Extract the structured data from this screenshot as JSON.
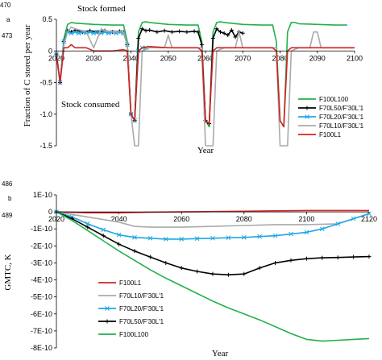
{
  "margin_numbers": [
    "470",
    "a",
    "473",
    "486",
    "b",
    "489"
  ],
  "chart_data": [
    {
      "type": "line",
      "panel": "a",
      "xlabel": "Year",
      "ylabel": "Fraction of C stored per year",
      "xlim": [
        2020,
        2100
      ],
      "ylim": [
        -1.5,
        0.5
      ],
      "xticks": [
        "2020",
        "2030",
        "2040",
        "2050",
        "2060",
        "2070",
        "2080",
        "2090",
        "2100"
      ],
      "yticks": [
        "0.5",
        "0",
        "-0.5",
        "-1.0",
        "-1.5"
      ],
      "annotations": [
        "Stock formed",
        "Stock consumed"
      ],
      "legend_position": "bottom-right",
      "series": [
        {
          "name": "F100L100",
          "color": "#22b14c",
          "marker": "none",
          "x": [
            2020,
            2021,
            2022,
            2023,
            2024,
            2025,
            2030,
            2035,
            2038,
            2039,
            2040,
            2041,
            2042,
            2043,
            2044,
            2045,
            2050,
            2055,
            2058,
            2059,
            2060,
            2061,
            2062,
            2063,
            2064,
            2065,
            2070,
            2075,
            2078,
            2079,
            2080,
            2081,
            2082,
            2083,
            2084,
            2085,
            2090,
            2095,
            2098
          ],
          "y": [
            -0.05,
            -0.5,
            0.2,
            0.42,
            0.45,
            0.44,
            0.42,
            0.41,
            0.41,
            0.15,
            -1.0,
            -1.1,
            0.3,
            0.45,
            0.46,
            0.45,
            0.42,
            0.41,
            0.41,
            0.15,
            -1.1,
            -1.2,
            0.3,
            0.45,
            0.46,
            0.45,
            0.42,
            0.41,
            0.41,
            0.15,
            -1.1,
            -1.2,
            0.3,
            0.45,
            0.45,
            0.43,
            0.42,
            0.41,
            0.41
          ]
        },
        {
          "name": "F70L50/F'30L'1",
          "color": "#000000",
          "marker": "plus",
          "x": [
            2020,
            2021,
            2022,
            2023,
            2024,
            2025,
            2027,
            2029,
            2031,
            2033,
            2035,
            2037,
            2038,
            2039,
            2040,
            2041,
            2042,
            2043,
            2044,
            2045,
            2047,
            2049,
            2051,
            2053,
            2055,
            2057,
            2058,
            2059,
            2060,
            2061,
            2062,
            2063,
            2064,
            2065,
            2066,
            2067,
            2068,
            2069,
            2070
          ],
          "y": [
            -0.05,
            -0.5,
            0.15,
            0.32,
            0.3,
            0.33,
            0.3,
            0.32,
            0.3,
            0.32,
            0.3,
            0.31,
            0.3,
            0.1,
            -1.0,
            -1.1,
            0.2,
            0.35,
            0.32,
            0.33,
            0.3,
            0.32,
            0.3,
            0.31,
            0.3,
            0.31,
            0.3,
            0.1,
            -1.1,
            -1.15,
            0.2,
            0.35,
            0.3,
            0.28,
            0.25,
            0.33,
            0.22,
            0.3,
            0.28
          ]
        },
        {
          "name": "F70L20/F'30L'1",
          "color": "#1ea7e1",
          "marker": "x",
          "x": [
            2020,
            2021,
            2022,
            2023,
            2024,
            2025,
            2026,
            2027,
            2028,
            2029,
            2030,
            2031,
            2032,
            2033,
            2034,
            2035,
            2036,
            2037,
            2038,
            2039,
            2040,
            2041,
            2042,
            2043,
            2044
          ],
          "y": [
            -0.05,
            -0.5,
            0.15,
            0.3,
            0.28,
            0.3,
            0.28,
            0.3,
            0.28,
            0.3,
            0.28,
            0.3,
            0.28,
            0.3,
            0.28,
            0.3,
            0.28,
            0.3,
            0.28,
            0.1,
            -1.0,
            -1.1,
            0.0,
            0.05,
            0.05
          ]
        },
        {
          "name": "F70L10/F'30L'1",
          "color": "#aaaaaa",
          "marker": "none",
          "x": [
            2020,
            2021,
            2022,
            2023,
            2024,
            2025,
            2027,
            2028,
            2030,
            2032,
            2033,
            2035,
            2037,
            2038,
            2039,
            2040,
            2041,
            2042,
            2043,
            2045,
            2047,
            2049,
            2050,
            2051,
            2052,
            2054,
            2056,
            2058,
            2059,
            2060,
            2061,
            2062,
            2063,
            2065,
            2067,
            2068,
            2069,
            2070,
            2071,
            2072,
            2075,
            2078,
            2079,
            2080,
            2081,
            2082,
            2083,
            2085,
            2087,
            2088,
            2089,
            2090,
            2091,
            2092,
            2093,
            2095,
            2098,
            2100
          ],
          "y": [
            -0.05,
            -0.5,
            0.1,
            0.3,
            0.38,
            0.35,
            0.32,
            0.3,
            0.05,
            0.35,
            0.32,
            0.3,
            0.3,
            0.3,
            0.1,
            -1.0,
            -1.5,
            -1.5,
            0.0,
            0.05,
            0.05,
            0.05,
            0.25,
            0.05,
            0.05,
            0.05,
            0.05,
            0.05,
            0.05,
            -1.5,
            -1.5,
            -1.5,
            0.0,
            0.05,
            0.05,
            0.05,
            0.3,
            0.05,
            0.05,
            0.05,
            0.05,
            0.05,
            0.05,
            -1.5,
            -1.5,
            -1.5,
            0.0,
            0.05,
            0.05,
            0.05,
            0.3,
            0.3,
            0.05,
            0.05,
            0.05,
            0.05,
            0.05,
            0.05
          ]
        },
        {
          "name": "F100L1",
          "color": "#d42020",
          "marker": "none",
          "x": [
            2020,
            2021,
            2022,
            2023,
            2024,
            2025,
            2028,
            2030,
            2035,
            2038,
            2039,
            2040,
            2041,
            2042,
            2043,
            2045,
            2050,
            2055,
            2058,
            2059,
            2060,
            2061,
            2062,
            2063,
            2065,
            2070,
            2075,
            2078,
            2079,
            2080,
            2081,
            2082,
            2083,
            2085,
            2090,
            2095,
            2100
          ],
          "y": [
            -0.05,
            -0.5,
            0.05,
            0.05,
            0.1,
            0.05,
            0.05,
            0.0,
            0.0,
            0.02,
            0.0,
            -1.0,
            -1.1,
            0.0,
            0.05,
            0.07,
            0.05,
            0.05,
            0.05,
            0.0,
            -1.1,
            -1.15,
            0.0,
            0.05,
            0.05,
            0.05,
            0.05,
            0.05,
            0.0,
            -1.1,
            -1.2,
            0.0,
            0.05,
            0.05,
            0.05,
            0.05,
            0.05
          ]
        }
      ]
    },
    {
      "type": "line",
      "panel": "b",
      "xlabel": "Year",
      "ylabel": "GMTC, K",
      "xlim": [
        2020,
        2120
      ],
      "ylim": [
        -8e-10,
        1e-10
      ],
      "xticks": [
        "2020",
        "2040",
        "2060",
        "2080",
        "2100",
        "2120"
      ],
      "yticks": [
        "1E-10",
        "0",
        "-1E-10",
        "-2E-10",
        "-3E-10",
        "-4E-10",
        "-5E-10",
        "-6E-10",
        "-7E-10",
        "-8E-10"
      ],
      "legend_position": "bottom-left",
      "series": [
        {
          "name": "F100L1",
          "color": "#d42020",
          "marker": "none",
          "x": [
            2020,
            2030,
            2040,
            2050,
            2060,
            2070,
            2080,
            2090,
            2100,
            2110,
            2120
          ],
          "y": [
            0,
            -5e-12,
            -5e-12,
            -2e-12,
            0,
            2e-12,
            4e-12,
            6e-12,
            8e-12,
            8e-12,
            8e-12
          ]
        },
        {
          "name": "F70L10/F'30L'1",
          "color": "#aaaaaa",
          "marker": "none",
          "x": [
            2020,
            2030,
            2040,
            2045,
            2050,
            2060,
            2070,
            2080,
            2090,
            2100,
            2110,
            2120
          ],
          "y": [
            0,
            -3e-11,
            -6e-11,
            -8.5e-11,
            -9e-11,
            -9e-11,
            -8.5e-11,
            -8e-11,
            -7.5e-11,
            -7.5e-11,
            -7e-11,
            -1e-11
          ]
        },
        {
          "name": "F70L20/F'30L'1",
          "color": "#1ea7e1",
          "marker": "x",
          "x": [
            2020,
            2025,
            2030,
            2035,
            2040,
            2045,
            2050,
            2055,
            2060,
            2065,
            2070,
            2075,
            2080,
            2085,
            2090,
            2095,
            2100,
            2105,
            2110,
            2115,
            2120
          ],
          "y": [
            0,
            -3e-11,
            -7e-11,
            -1.05e-10,
            -1.35e-10,
            -1.5e-10,
            -1.55e-10,
            -1.6e-10,
            -1.6e-10,
            -1.57e-10,
            -1.55e-10,
            -1.52e-10,
            -1.5e-10,
            -1.45e-10,
            -1.4e-10,
            -1.3e-10,
            -1.2e-10,
            -1e-10,
            -7e-11,
            -4e-11,
            -1e-11
          ]
        },
        {
          "name": "F70L50/F'30L'1",
          "color": "#000000",
          "marker": "plus",
          "x": [
            2020,
            2025,
            2030,
            2035,
            2040,
            2045,
            2050,
            2055,
            2060,
            2065,
            2070,
            2075,
            2080,
            2085,
            2090,
            2095,
            2100,
            2105,
            2110,
            2115,
            2120
          ],
          "y": [
            0,
            -4e-11,
            -9e-11,
            -1.4e-10,
            -1.9e-10,
            -2.3e-10,
            -2.65e-10,
            -3e-10,
            -3.3e-10,
            -3.5e-10,
            -3.65e-10,
            -3.7e-10,
            -3.65e-10,
            -3.3e-10,
            -3e-10,
            -2.85e-10,
            -2.75e-10,
            -2.7e-10,
            -2.68e-10,
            -2.65e-10,
            -2.63e-10
          ]
        },
        {
          "name": "F100L100",
          "color": "#22b14c",
          "marker": "none",
          "x": [
            2020,
            2025,
            2030,
            2035,
            2040,
            2045,
            2050,
            2055,
            2060,
            2065,
            2070,
            2075,
            2080,
            2085,
            2090,
            2095,
            2100,
            2105,
            2110,
            2115,
            2120
          ],
          "y": [
            0,
            -5e-11,
            -1.1e-10,
            -1.7e-10,
            -2.3e-10,
            -2.85e-10,
            -3.4e-10,
            -3.9e-10,
            -4.35e-10,
            -4.8e-10,
            -5.25e-10,
            -5.65e-10,
            -6e-10,
            -6.35e-10,
            -6.75e-10,
            -7.15e-10,
            -7.5e-10,
            -7.6e-10,
            -7.55e-10,
            -7.5e-10,
            -7.45e-10
          ]
        }
      ]
    }
  ]
}
